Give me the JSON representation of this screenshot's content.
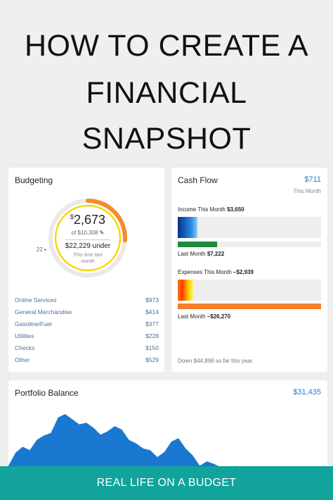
{
  "header": {
    "line1": "HOW TO CREATE A",
    "line2": "FINANCIAL",
    "line3": "SNAPSHOT"
  },
  "budgeting": {
    "title": "Budgeting",
    "spent_symbol": "$",
    "spent_amount": "2,673",
    "of_total": "of $10,308",
    "edit_icon": "pencil-icon",
    "under_text": "$22,229 under",
    "note": "This time last month",
    "day_marker": "22",
    "ring_progress": 0.26,
    "categories": [
      {
        "name": "Online Services",
        "amount": "$973"
      },
      {
        "name": "General Merchandise",
        "amount": "$414"
      },
      {
        "name": "Gasoline/Fuel",
        "amount": "$377"
      },
      {
        "name": "Utilities",
        "amount": "$228"
      },
      {
        "name": "Checks",
        "amount": "$150"
      },
      {
        "name": "Other",
        "amount": "$529"
      }
    ]
  },
  "cash_flow": {
    "title": "Cash Flow",
    "amount": "$711",
    "period": "This Month",
    "income_label": "Income This Month",
    "income_value": "$3,650",
    "income_last_label": "Last Month",
    "income_last_value": "$7,222",
    "expense_label": "Expenses This Month",
    "expense_value": "–$2,939",
    "expense_last_label": "Last Month",
    "expense_last_value": "–$26,270",
    "footer": "Down $44,898 so far this year."
  },
  "portfolio": {
    "title": "Portfolio Balance",
    "amount": "$31,435"
  },
  "chart_data": {
    "type": "area",
    "title": "Portfolio Balance",
    "x": [
      0,
      1,
      2,
      3,
      4,
      5,
      6,
      7,
      8,
      9,
      10,
      11,
      12,
      13,
      14,
      15,
      16,
      17,
      18,
      19,
      20,
      21,
      22,
      23,
      24,
      25,
      26,
      27,
      28,
      29,
      30,
      31,
      32,
      33,
      34,
      35,
      36,
      37,
      38,
      39,
      40,
      41,
      42,
      43,
      44,
      45
    ],
    "values": [
      40,
      55,
      62,
      58,
      70,
      75,
      78,
      96,
      100,
      94,
      88,
      90,
      84,
      76,
      80,
      86,
      82,
      70,
      66,
      60,
      58,
      50,
      56,
      68,
      72,
      60,
      52,
      40,
      45,
      42,
      38,
      35,
      40,
      32,
      28,
      25,
      20,
      22,
      18,
      12,
      10,
      14,
      8,
      6,
      10,
      5
    ],
    "ylim": [
      0,
      100
    ],
    "color": "#1b78d0"
  },
  "banner": {
    "text": "REAL LIFE ON A BUDGET"
  },
  "colors": {
    "accent": "#1e7fd0",
    "banner": "#12a39c",
    "ring_orange": "#f58c2a",
    "ring_yellow": "#f5d90a"
  }
}
